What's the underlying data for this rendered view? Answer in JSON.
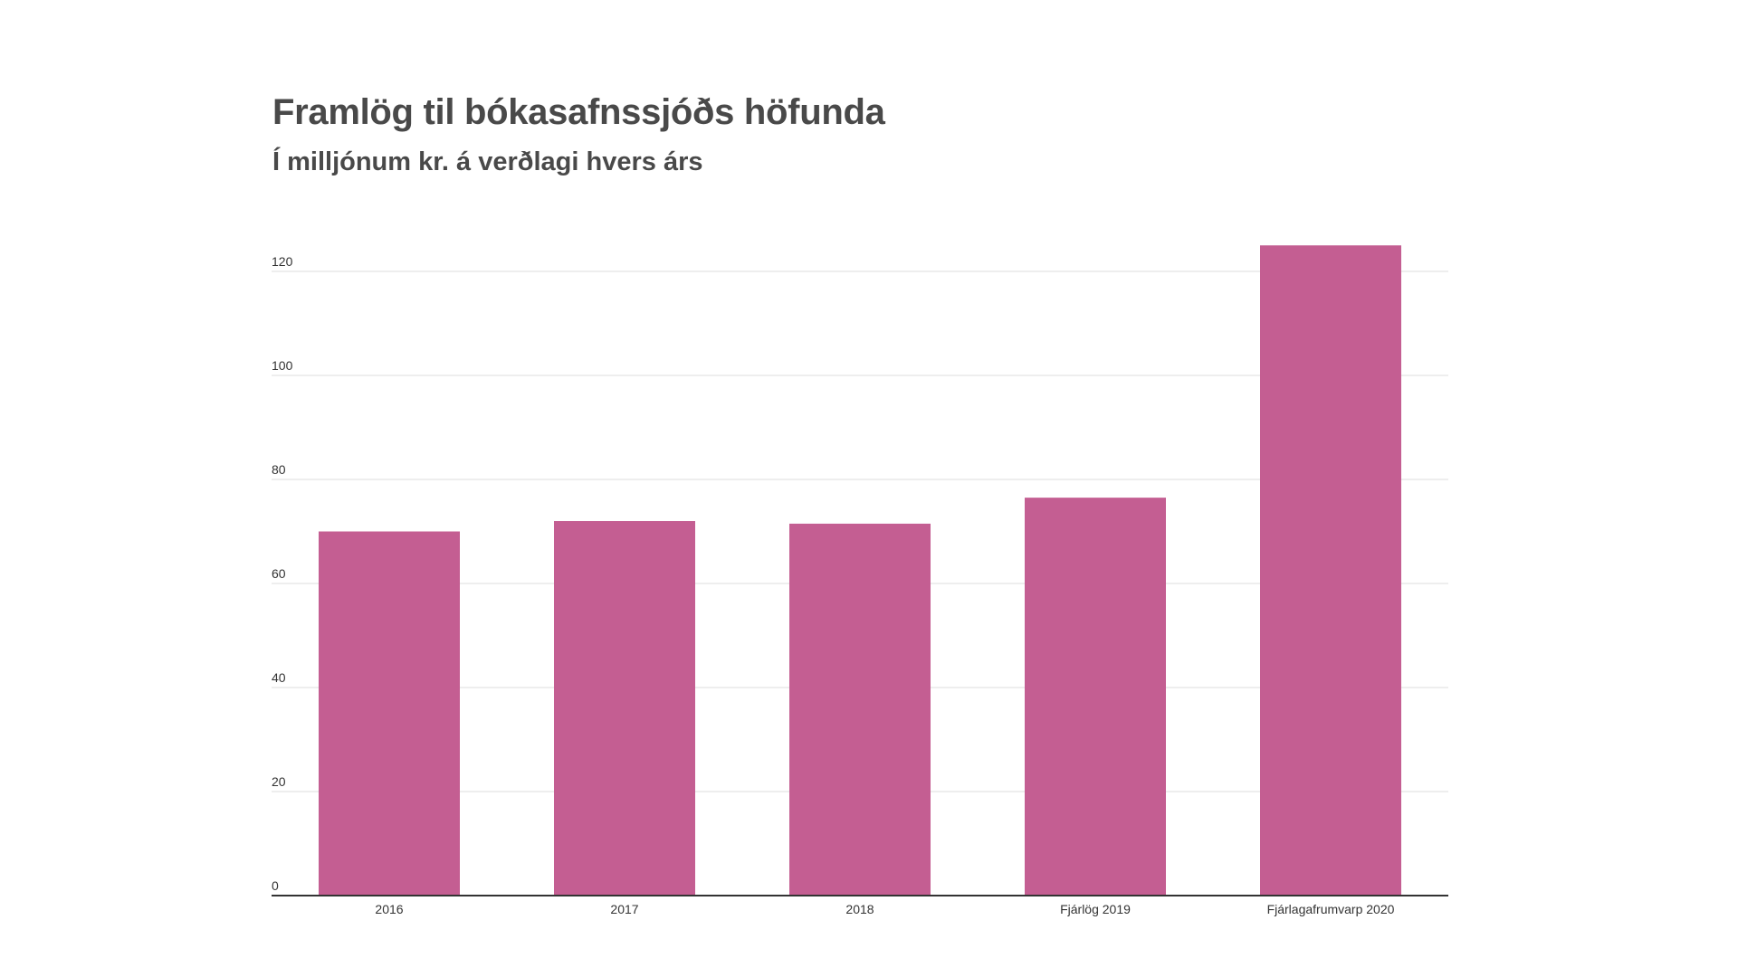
{
  "chart_data": {
    "type": "bar",
    "title": "Framlög til bókasafnssjóðs höfunda",
    "subtitle": "Í milljónum kr. á verðlagi hvers árs",
    "categories": [
      "2016",
      "2017",
      "2018",
      "Fjárlög 2019",
      "Fjárlagafrumvarp 2020"
    ],
    "values": [
      70,
      72,
      71.5,
      76.5,
      125
    ],
    "ylim": [
      0,
      120
    ],
    "yticks": [
      "0",
      "20",
      "40",
      "60",
      "80",
      "100",
      "120"
    ],
    "xlabel": "",
    "ylabel": "",
    "grid": true,
    "bar_color": "#c45e92"
  }
}
